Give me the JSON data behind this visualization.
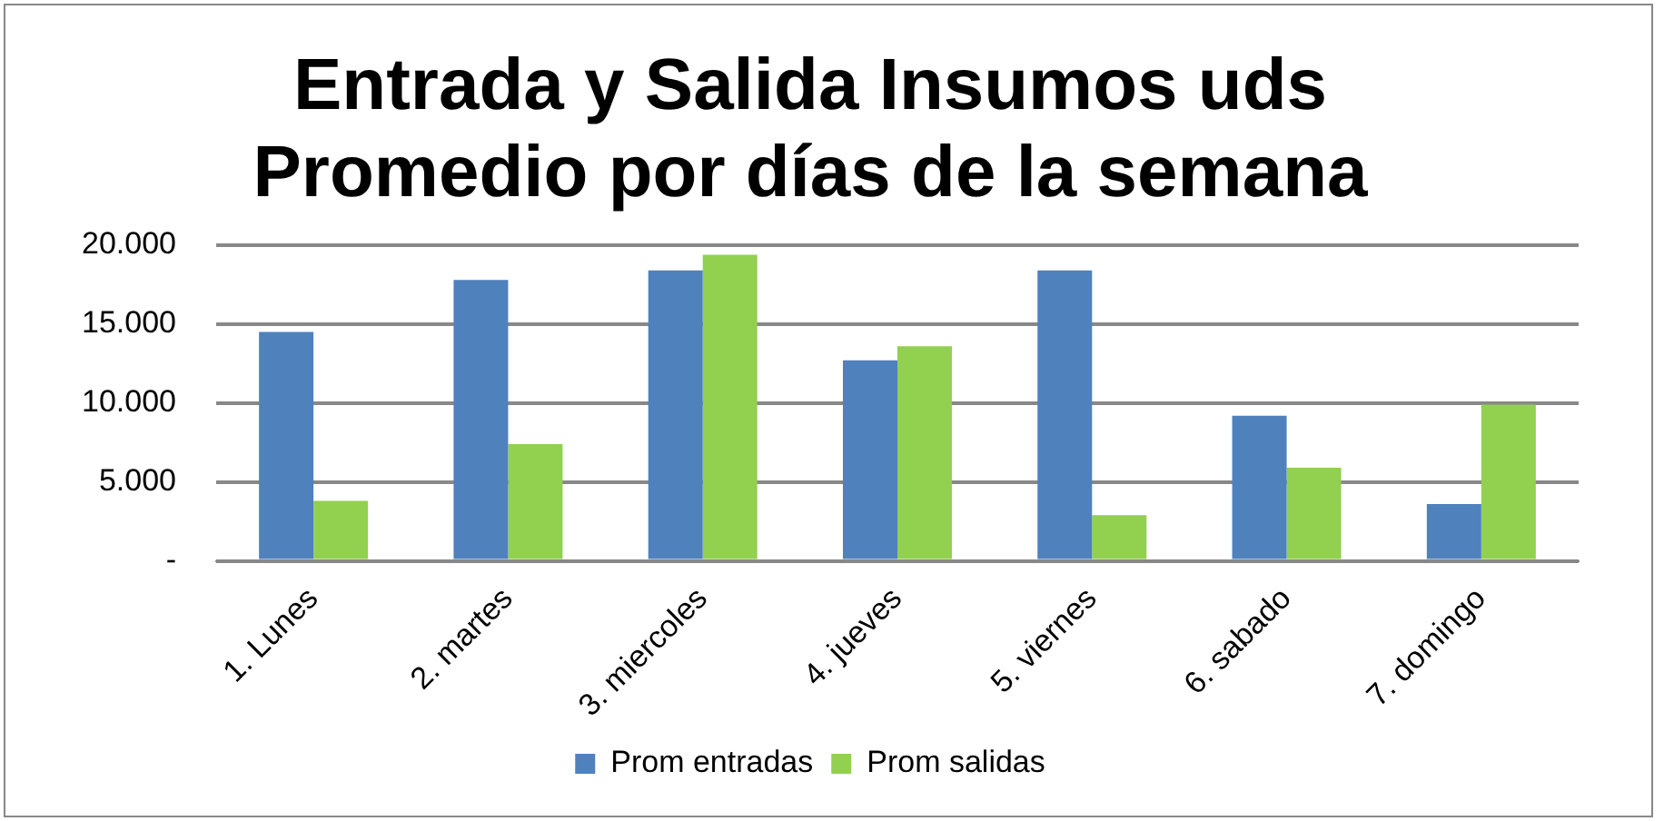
{
  "chart_data": {
    "type": "bar",
    "title": [
      "Entrada y Salida Insumos uds",
      "Promedio por días de la semana"
    ],
    "categories": [
      "1. Lunes",
      "2. martes",
      "3. miercoles",
      "4. jueves",
      "5. viernes",
      "6. sabado",
      "7. domingo"
    ],
    "series": [
      {
        "name": "Prom entradas",
        "color": "#4f81bd",
        "values": [
          14500,
          17800,
          18400,
          12700,
          18400,
          9200,
          3600
        ]
      },
      {
        "name": "Prom salidas",
        "color": "#92d050",
        "values": [
          3800,
          7400,
          19400,
          13600,
          2900,
          5900,
          9900
        ]
      }
    ],
    "ylim": [
      0,
      20000
    ],
    "yticks": [
      {
        "value": 0,
        "label": "-"
      },
      {
        "value": 5000,
        "label": "5.000"
      },
      {
        "value": 10000,
        "label": "10.000"
      },
      {
        "value": 15000,
        "label": "15.000"
      },
      {
        "value": 20000,
        "label": "20.000"
      }
    ],
    "grid": "y",
    "legend": "bottom"
  }
}
